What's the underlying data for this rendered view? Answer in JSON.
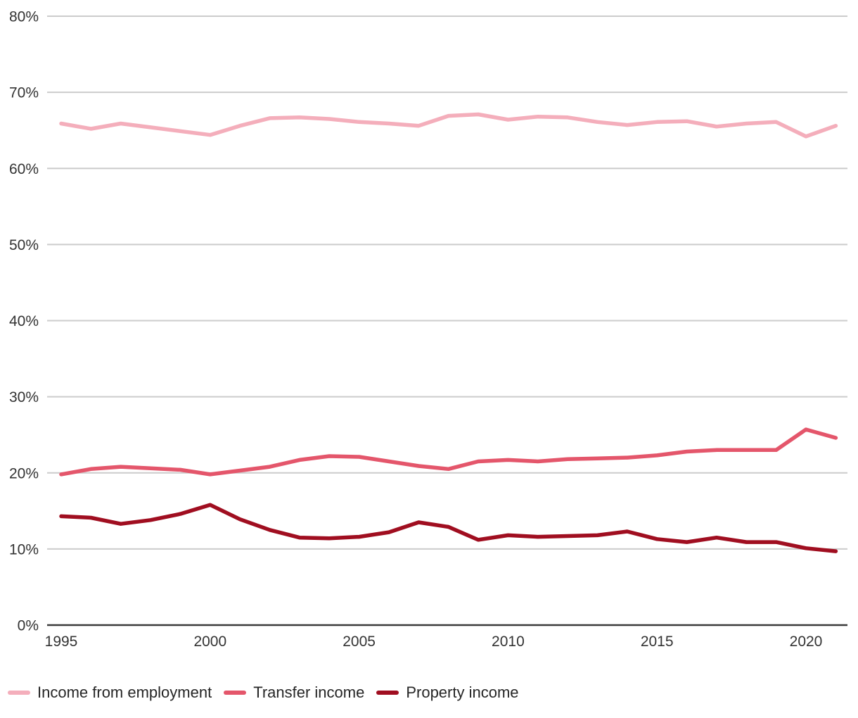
{
  "chart_data": {
    "type": "line",
    "title": "",
    "xlabel": "",
    "ylabel": "",
    "xlim": [
      1995,
      2021
    ],
    "ylim": [
      0,
      80
    ],
    "grid": "horizontal",
    "legend_position": "bottom-left",
    "x": [
      1995,
      1996,
      1997,
      1998,
      1999,
      2000,
      2001,
      2002,
      2003,
      2004,
      2005,
      2006,
      2007,
      2008,
      2009,
      2010,
      2011,
      2012,
      2013,
      2014,
      2015,
      2016,
      2017,
      2018,
      2019,
      2020,
      2021
    ],
    "x_ticks": [
      {
        "value": 1995,
        "label": "1995"
      },
      {
        "value": 2000,
        "label": "2000"
      },
      {
        "value": 2005,
        "label": "2005"
      },
      {
        "value": 2010,
        "label": "2010"
      },
      {
        "value": 2015,
        "label": "2015"
      },
      {
        "value": 2020,
        "label": "2020"
      }
    ],
    "y_ticks": [
      {
        "value": 0,
        "label": "0%"
      },
      {
        "value": 10,
        "label": "10%"
      },
      {
        "value": 20,
        "label": "20%"
      },
      {
        "value": 30,
        "label": "30%"
      },
      {
        "value": 40,
        "label": "40%"
      },
      {
        "value": 50,
        "label": "50%"
      },
      {
        "value": 60,
        "label": "60%"
      },
      {
        "value": 70,
        "label": "70%"
      },
      {
        "value": 80,
        "label": "80%"
      }
    ],
    "series": [
      {
        "name": "Income from employment",
        "color": "#F4AEBB",
        "values": [
          65.9,
          65.2,
          65.9,
          65.4,
          64.9,
          64.4,
          65.6,
          66.6,
          66.7,
          66.5,
          66.1,
          65.9,
          65.6,
          66.9,
          67.1,
          66.4,
          66.8,
          66.7,
          66.1,
          65.7,
          66.1,
          66.2,
          65.5,
          65.9,
          66.1,
          64.2,
          65.6
        ]
      },
      {
        "name": "Transfer income",
        "color": "#E4566B",
        "values": [
          19.8,
          20.5,
          20.8,
          20.6,
          20.4,
          19.8,
          20.3,
          20.8,
          21.7,
          22.2,
          22.1,
          21.5,
          20.9,
          20.5,
          21.5,
          21.7,
          21.5,
          21.8,
          21.9,
          22.0,
          22.3,
          22.8,
          23.0,
          23.0,
          23.0,
          25.7,
          24.6
        ]
      },
      {
        "name": "Property income",
        "color": "#A00E20",
        "values": [
          14.3,
          14.1,
          13.3,
          13.8,
          14.6,
          15.8,
          13.9,
          12.5,
          11.5,
          11.4,
          11.6,
          12.2,
          13.5,
          12.9,
          11.2,
          11.8,
          11.6,
          11.7,
          11.8,
          12.3,
          11.3,
          10.9,
          11.5,
          10.9,
          10.9,
          10.1,
          9.7
        ]
      }
    ],
    "colors": {
      "gridline": "#CCCCCC",
      "axis_line": "#3A3A3A",
      "tick_text": "#333333",
      "background": "#FFFFFF"
    }
  }
}
